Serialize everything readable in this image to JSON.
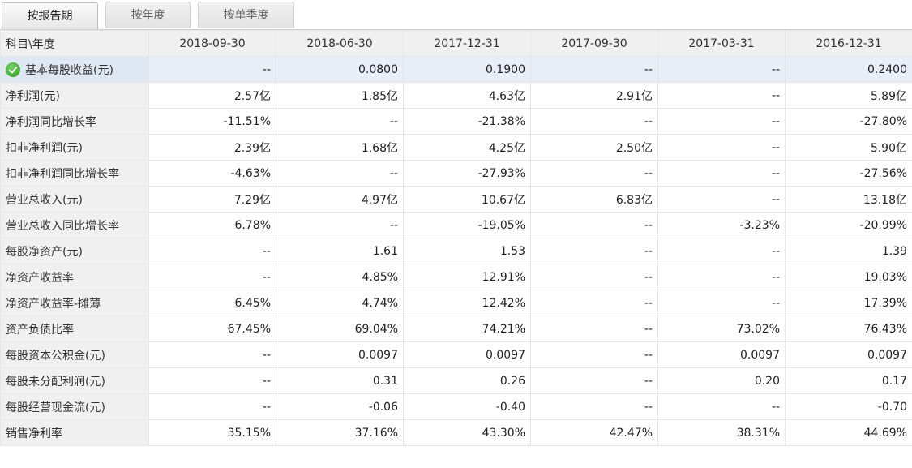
{
  "tabs": [
    {
      "label": "按报告期",
      "active": true
    },
    {
      "label": "按年度",
      "active": false
    },
    {
      "label": "按单季度",
      "active": false
    }
  ],
  "table": {
    "corner_header": "科目\\年度",
    "columns": [
      "2018-09-30",
      "2018-06-30",
      "2017-12-31",
      "2017-09-30",
      "2017-03-31",
      "2016-12-31"
    ],
    "rows": [
      {
        "label": "基本每股收益(元)",
        "values": [
          "--",
          "0.0800",
          "0.1900",
          "--",
          "--",
          "0.2400"
        ],
        "highlight": true,
        "icon": "check-icon"
      },
      {
        "label": "净利润(元)",
        "values": [
          "2.57亿",
          "1.85亿",
          "4.63亿",
          "2.91亿",
          "--",
          "5.89亿"
        ]
      },
      {
        "label": "净利润同比增长率",
        "values": [
          "-11.51%",
          "--",
          "-21.38%",
          "--",
          "--",
          "-27.80%"
        ]
      },
      {
        "label": "扣非净利润(元)",
        "values": [
          "2.39亿",
          "1.68亿",
          "4.25亿",
          "2.50亿",
          "--",
          "5.90亿"
        ]
      },
      {
        "label": "扣非净利润同比增长率",
        "values": [
          "-4.63%",
          "--",
          "-27.93%",
          "--",
          "--",
          "-27.56%"
        ]
      },
      {
        "label": "营业总收入(元)",
        "values": [
          "7.29亿",
          "4.97亿",
          "10.67亿",
          "6.83亿",
          "--",
          "13.18亿"
        ]
      },
      {
        "label": "营业总收入同比增长率",
        "values": [
          "6.78%",
          "--",
          "-19.05%",
          "--",
          "-3.23%",
          "-20.99%"
        ]
      },
      {
        "label": "每股净资产(元)",
        "values": [
          "--",
          "1.61",
          "1.53",
          "--",
          "--",
          "1.39"
        ]
      },
      {
        "label": "净资产收益率",
        "values": [
          "--",
          "4.85%",
          "12.91%",
          "--",
          "--",
          "19.03%"
        ]
      },
      {
        "label": "净资产收益率-摊薄",
        "values": [
          "6.45%",
          "4.74%",
          "12.42%",
          "--",
          "--",
          "17.39%"
        ]
      },
      {
        "label": "资产负债比率",
        "values": [
          "67.45%",
          "69.04%",
          "74.21%",
          "--",
          "73.02%",
          "76.43%"
        ]
      },
      {
        "label": "每股资本公积金(元)",
        "values": [
          "--",
          "0.0097",
          "0.0097",
          "--",
          "0.0097",
          "0.0097"
        ]
      },
      {
        "label": "每股未分配利润(元)",
        "values": [
          "--",
          "0.31",
          "0.26",
          "--",
          "0.20",
          "0.17"
        ]
      },
      {
        "label": "每股经营现金流(元)",
        "values": [
          "--",
          "-0.06",
          "-0.40",
          "--",
          "--",
          "-0.70"
        ]
      },
      {
        "label": "销售净利率",
        "values": [
          "35.15%",
          "37.16%",
          "43.30%",
          "42.47%",
          "38.31%",
          "44.69%"
        ]
      }
    ]
  }
}
